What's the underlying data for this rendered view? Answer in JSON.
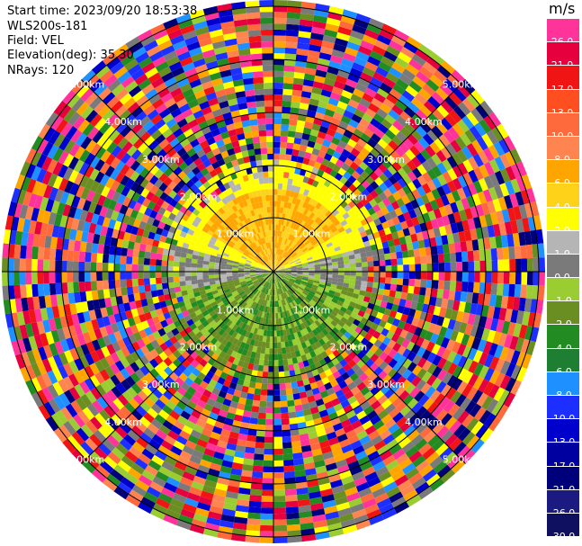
{
  "header": {
    "start_time": "Start time: 2023/09/20 18:53:38",
    "instrument": "WLS200s-181",
    "field": "Field: VEL",
    "elevation": "Elevation(deg): 35.30",
    "nrays": "NRays: 120"
  },
  "colorbar": {
    "unit": "m/s",
    "entries": [
      {
        "label": "26.0",
        "color": "#ff3399"
      },
      {
        "label": "21.0",
        "color": "#e6003e"
      },
      {
        "label": "17.0",
        "color": "#f01414"
      },
      {
        "label": "13.0",
        "color": "#ff4e1f"
      },
      {
        "label": "10.0",
        "color": "#ff6a3d"
      },
      {
        "label": "8.0",
        "color": "#ff8550"
      },
      {
        "label": "6.0",
        "color": "#ffa500"
      },
      {
        "label": "4.0",
        "color": "#ffd21a"
      },
      {
        "label": "2.0",
        "color": "#ffff00"
      },
      {
        "label": "1.0",
        "color": "#b5b5b5"
      },
      {
        "label": "0.0",
        "color": "#7a7a7a"
      },
      {
        "label": "-1.0",
        "color": "#9acd32"
      },
      {
        "label": "-2.0",
        "color": "#6b8e23"
      },
      {
        "label": "-4.0",
        "color": "#228b22"
      },
      {
        "label": "-6.0",
        "color": "#1e7f32"
      },
      {
        "label": "-8.0",
        "color": "#1e90ff"
      },
      {
        "label": "-10.0",
        "color": "#1c2fff"
      },
      {
        "label": "-13.0",
        "color": "#0000cd"
      },
      {
        "label": "-17.0",
        "color": "#0000a0"
      },
      {
        "label": "-21.0",
        "color": "#00007a"
      },
      {
        "label": "-26.0",
        "color": "#1a1a80"
      },
      {
        "label": "-30.0",
        "color": "#101060"
      }
    ]
  },
  "range_labels": [
    "1.00km",
    "2.00km",
    "3.00km",
    "4.00km",
    "5.00km"
  ]
}
